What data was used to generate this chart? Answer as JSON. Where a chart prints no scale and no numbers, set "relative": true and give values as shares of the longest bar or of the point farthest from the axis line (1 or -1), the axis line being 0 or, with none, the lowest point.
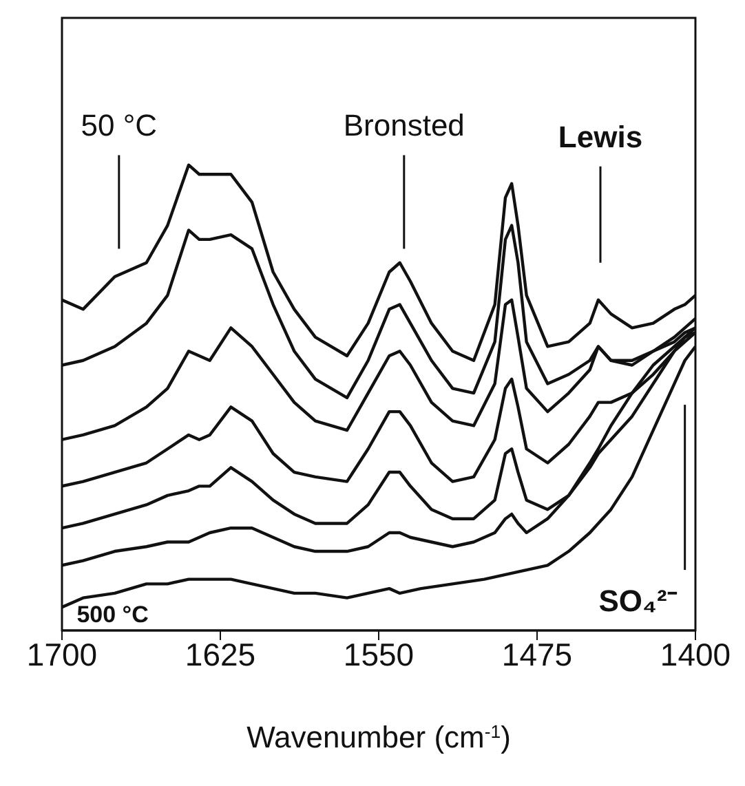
{
  "chart_data": {
    "type": "line",
    "relative": true,
    "xlabel": "Wavenumber (cm$^{-1}$)",
    "xlim": [
      1700,
      1400
    ],
    "xticks": [
      1700,
      1625,
      1550,
      1475,
      1400
    ],
    "marker": "none",
    "line_style": "solid",
    "x": [
      1700,
      1690,
      1675,
      1660,
      1650,
      1640,
      1635,
      1630,
      1620,
      1610,
      1600,
      1590,
      1580,
      1565,
      1555,
      1545,
      1540,
      1535,
      1525,
      1515,
      1505,
      1495,
      1490,
      1487,
      1484,
      1480,
      1470,
      1460,
      1450,
      1446,
      1440,
      1430,
      1420,
      1410,
      1405,
      1400
    ],
    "series": [
      {
        "color": "#111111",
        "values": [
          0.71,
          0.69,
          0.76,
          0.79,
          0.87,
          1,
          0.98,
          0.98,
          0.98,
          0.92,
          0.77,
          0.69,
          0.63,
          0.59,
          0.66,
          0.77,
          0.79,
          0.75,
          0.66,
          0.6,
          0.58,
          0.7,
          0.93,
          0.96,
          0.87,
          0.72,
          0.61,
          0.62,
          0.66,
          0.71,
          0.68,
          0.65,
          0.66,
          0.69,
          0.7,
          0.72
        ]
      },
      {
        "color": "#111111",
        "values": [
          0.57,
          0.58,
          0.61,
          0.66,
          0.72,
          0.86,
          0.84,
          0.84,
          0.85,
          0.82,
          0.7,
          0.6,
          0.54,
          0.5,
          0.58,
          0.69,
          0.7,
          0.66,
          0.58,
          0.52,
          0.51,
          0.62,
          0.84,
          0.87,
          0.79,
          0.62,
          0.53,
          0.55,
          0.58,
          0.61,
          0.58,
          0.57,
          0.6,
          0.63,
          0.65,
          0.67
        ]
      },
      {
        "color": "#111111",
        "values": [
          0.41,
          0.42,
          0.44,
          0.48,
          0.52,
          0.6,
          0.59,
          0.58,
          0.65,
          0.61,
          0.55,
          0.49,
          0.45,
          0.43,
          0.51,
          0.59,
          0.6,
          0.57,
          0.49,
          0.45,
          0.44,
          0.53,
          0.7,
          0.71,
          0.63,
          0.52,
          0.47,
          0.51,
          0.56,
          0.61,
          0.58,
          0.58,
          0.6,
          0.62,
          0.64,
          0.65
        ]
      },
      {
        "color": "#111111",
        "values": [
          0.31,
          0.32,
          0.34,
          0.36,
          0.39,
          0.42,
          0.41,
          0.42,
          0.48,
          0.45,
          0.38,
          0.34,
          0.33,
          0.32,
          0.39,
          0.47,
          0.47,
          0.44,
          0.36,
          0.32,
          0.33,
          0.41,
          0.52,
          0.54,
          0.48,
          0.39,
          0.36,
          0.4,
          0.46,
          0.49,
          0.49,
          0.51,
          0.55,
          0.6,
          0.63,
          0.65
        ]
      },
      {
        "color": "#111111",
        "values": [
          0.22,
          0.23,
          0.25,
          0.27,
          0.29,
          0.3,
          0.31,
          0.31,
          0.35,
          0.32,
          0.28,
          0.25,
          0.23,
          0.23,
          0.27,
          0.34,
          0.34,
          0.31,
          0.26,
          0.24,
          0.24,
          0.28,
          0.38,
          0.39,
          0.34,
          0.28,
          0.26,
          0.29,
          0.35,
          0.38,
          0.41,
          0.46,
          0.53,
          0.6,
          0.62,
          0.64
        ]
      },
      {
        "color": "#111111",
        "values": [
          0.14,
          0.15,
          0.17,
          0.18,
          0.19,
          0.19,
          0.2,
          0.21,
          0.22,
          0.22,
          0.2,
          0.18,
          0.17,
          0.17,
          0.18,
          0.21,
          0.21,
          0.2,
          0.19,
          0.18,
          0.19,
          0.21,
          0.24,
          0.25,
          0.23,
          0.21,
          0.24,
          0.29,
          0.36,
          0.39,
          0.44,
          0.51,
          0.57,
          0.61,
          0.63,
          0.64
        ]
      },
      {
        "color": "#111111",
        "x": [
          1700,
          1690,
          1675,
          1660,
          1650,
          1640,
          1630,
          1620,
          1610,
          1600,
          1590,
          1580,
          1565,
          1555,
          1545,
          1540,
          1530,
          1515,
          1500,
          1480,
          1470,
          1460,
          1450,
          1440,
          1430,
          1420,
          1410,
          1405,
          1400
        ],
        "values": [
          0.05,
          0.07,
          0.08,
          0.1,
          0.1,
          0.11,
          0.11,
          0.11,
          0.1,
          0.09,
          0.08,
          0.08,
          0.07,
          0.08,
          0.09,
          0.08,
          0.09,
          0.1,
          0.11,
          0.13,
          0.14,
          0.17,
          0.21,
          0.26,
          0.33,
          0.43,
          0.53,
          0.58,
          0.61
        ]
      }
    ],
    "annotations": [
      "50 °C",
      "Bronsted",
      "Lewis",
      "SO₄²⁻",
      "500 °C"
    ]
  }
}
